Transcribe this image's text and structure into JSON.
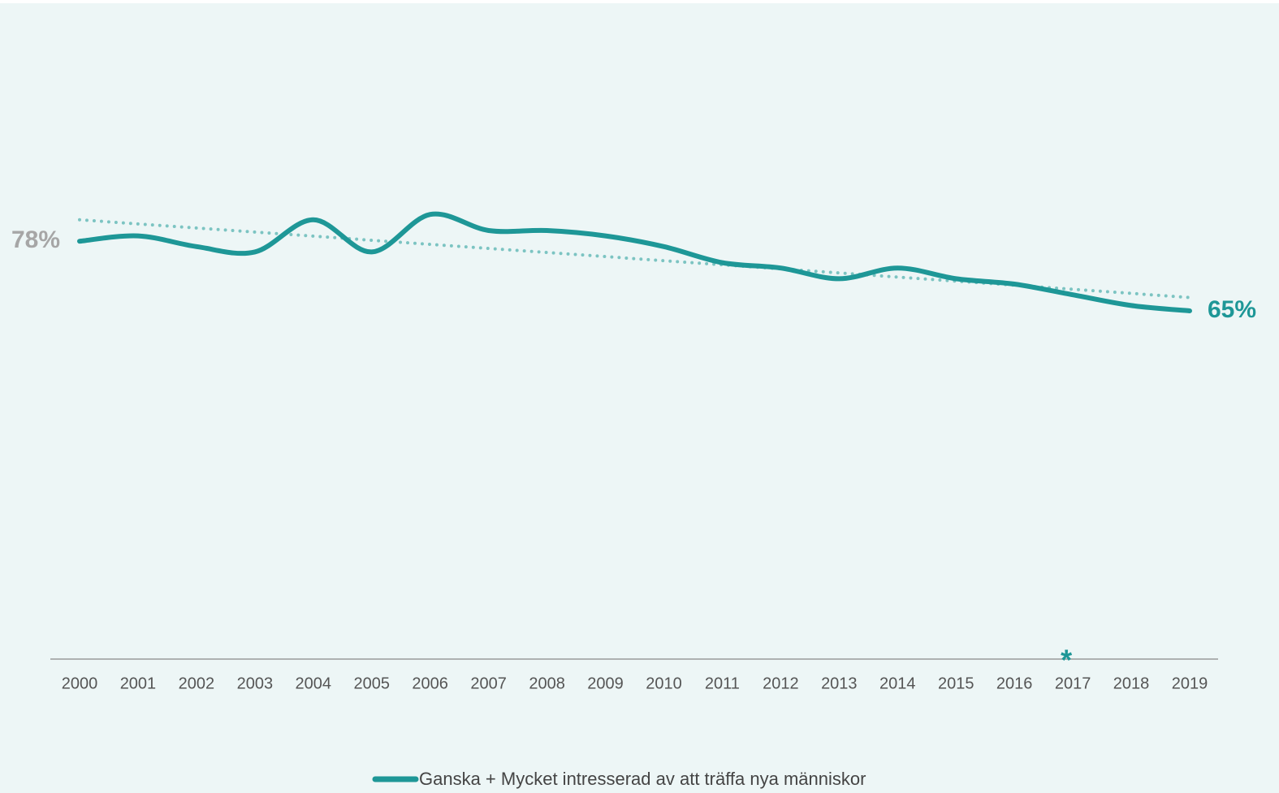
{
  "chart_data": {
    "type": "line",
    "categories": [
      "2000",
      "2001",
      "2002",
      "2003",
      "2004",
      "2005",
      "2006",
      "2007",
      "2008",
      "2009",
      "2010",
      "2011",
      "2012",
      "2013",
      "2014",
      "2015",
      "2016",
      "2017",
      "2018",
      "2019"
    ],
    "series": [
      {
        "name": "Ganska + Mycket intresserad av att träffa nya människor",
        "color": "#1e9797",
        "values": [
          78,
          79,
          77,
          76,
          82,
          76,
          83,
          80,
          80,
          79,
          77,
          74,
          73,
          71,
          73,
          71,
          70,
          68,
          66,
          65
        ],
        "value_labels": [
          "78%",
          null,
          null,
          null,
          null,
          null,
          null,
          null,
          null,
          null,
          null,
          null,
          null,
          null,
          null,
          null,
          null,
          null,
          null,
          "65%"
        ]
      }
    ],
    "trendline": {
      "start": 82,
      "end": 67.5,
      "color": "#7cc4c2"
    },
    "annotations": [
      {
        "text": "*",
        "category": "2017"
      }
    ],
    "ylim": [
      0,
      100
    ],
    "legend": "bottom"
  }
}
